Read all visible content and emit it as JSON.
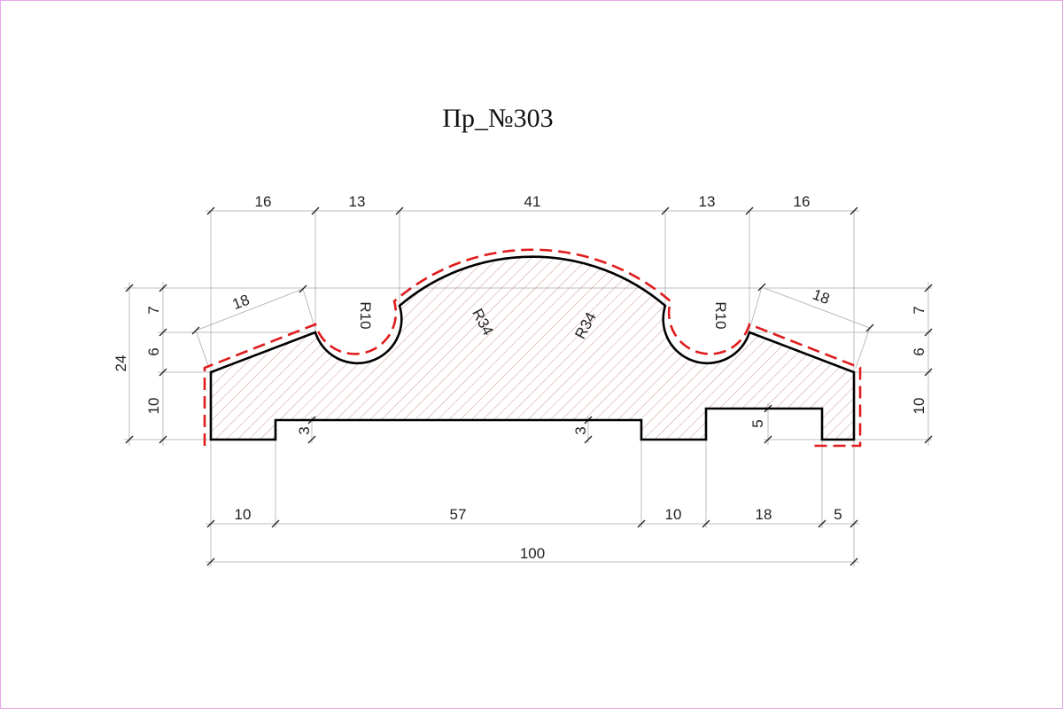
{
  "title": "Пр_№303",
  "colors": {
    "profile_outline": "#000000",
    "hatch": "#c48e86",
    "coating_contour": "#e01b1b",
    "extension_lines": "#bcbcbc",
    "page_border": "#e9a6e6"
  },
  "dimensions": {
    "top": [
      "16",
      "13",
      "41",
      "13",
      "16"
    ],
    "bottom": [
      "10",
      "57",
      "10",
      "18",
      "5"
    ],
    "overall_width": "100",
    "left_height_total": "24",
    "left_heights": [
      "7",
      "6",
      "10"
    ],
    "right_heights": [
      "7",
      "6",
      "10"
    ],
    "slope_left": "18",
    "slope_right": "18",
    "groove_depth_left": "3",
    "groove_depth_right": "3",
    "notch_depth": "5"
  },
  "radii": {
    "fillet_left": "R10",
    "arc_left": "R34",
    "arc_right": "R34",
    "fillet_right": "R10"
  }
}
